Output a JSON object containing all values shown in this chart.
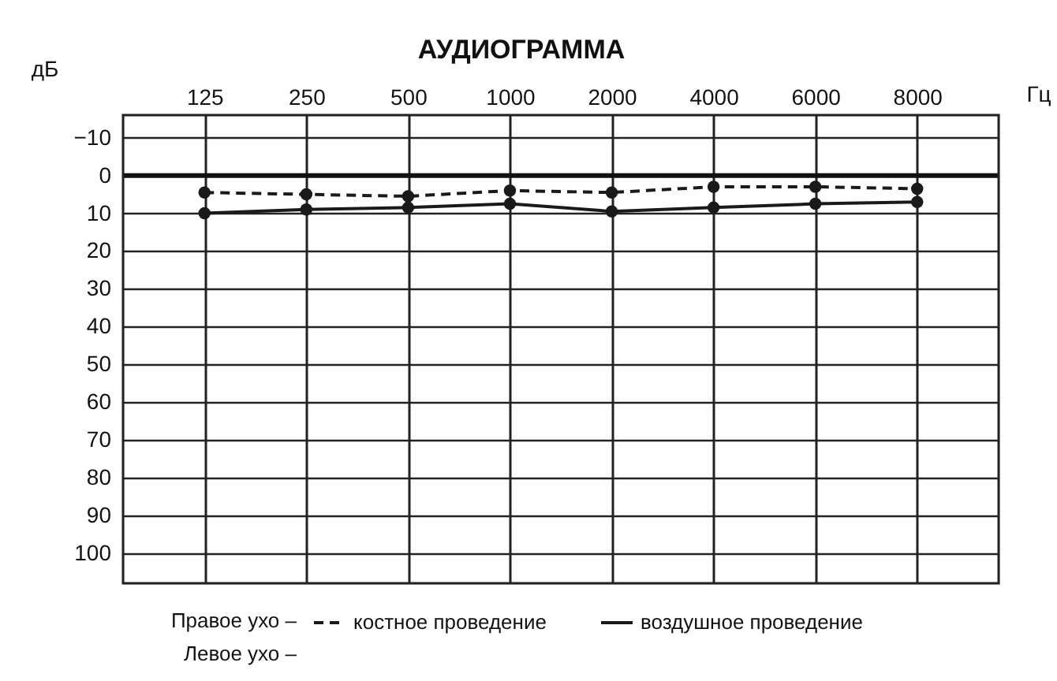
{
  "chart_data": {
    "type": "line",
    "title": "АУДИОГРАММА",
    "xlabel": "Гц",
    "ylabel": "дБ",
    "categories": [
      "125",
      "250",
      "500",
      "1000",
      "2000",
      "4000",
      "6000",
      "8000"
    ],
    "series": [
      {
        "name": "костное проведение",
        "color": "#1a1a1a",
        "line_style": "dashed",
        "values": [
          4.5,
          5,
          5.5,
          4,
          4.5,
          3,
          3,
          3.5
        ]
      },
      {
        "name": "воздушное проведение",
        "color": "#1a1a1a",
        "line_style": "solid",
        "values": [
          10,
          9,
          8.5,
          7.5,
          9.5,
          8.5,
          7.5,
          7
        ]
      }
    ],
    "ylim": [
      108,
      -16
    ],
    "yticks": [
      -10,
      0,
      10,
      20,
      30,
      40,
      50,
      60,
      70,
      80,
      90,
      100
    ],
    "grid": true,
    "marker": "circle",
    "legend": "bottom",
    "ref_lines": [
      {
        "axis": "y",
        "value": 0
      }
    ],
    "annotations": [
      "Правое ухо –",
      "Левое ухо –"
    ]
  }
}
